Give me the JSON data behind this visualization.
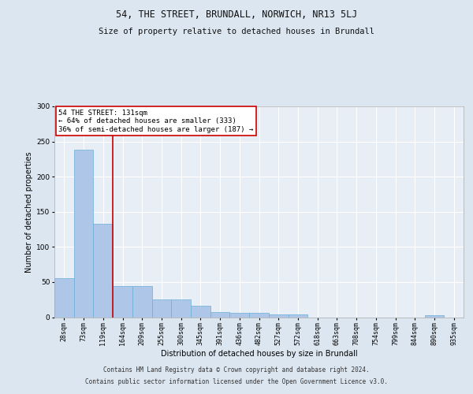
{
  "title1": "54, THE STREET, BRUNDALL, NORWICH, NR13 5LJ",
  "title2": "Size of property relative to detached houses in Brundall",
  "xlabel": "Distribution of detached houses by size in Brundall",
  "ylabel": "Number of detached properties",
  "footer1": "Contains HM Land Registry data © Crown copyright and database right 2024.",
  "footer2": "Contains public sector information licensed under the Open Government Licence v3.0.",
  "bar_labels": [
    "28sqm",
    "73sqm",
    "119sqm",
    "164sqm",
    "209sqm",
    "255sqm",
    "300sqm",
    "345sqm",
    "391sqm",
    "436sqm",
    "482sqm",
    "527sqm",
    "572sqm",
    "618sqm",
    "663sqm",
    "708sqm",
    "754sqm",
    "799sqm",
    "844sqm",
    "890sqm",
    "935sqm"
  ],
  "bar_values": [
    56,
    238,
    133,
    44,
    44,
    25,
    25,
    16,
    7,
    6,
    6,
    4,
    4,
    0,
    0,
    0,
    0,
    0,
    0,
    3,
    0
  ],
  "bar_color": "#aec6e8",
  "bar_edge_color": "#6aaed6",
  "vline_idx": 2.5,
  "vline_color": "#cc0000",
  "annotation_text": "54 THE STREET: 131sqm\n← 64% of detached houses are smaller (333)\n36% of semi-detached houses are larger (187) →",
  "annotation_box_facecolor": "#ffffff",
  "annotation_box_edgecolor": "#cc0000",
  "ylim": [
    0,
    300
  ],
  "yticks": [
    0,
    50,
    100,
    150,
    200,
    250,
    300
  ],
  "bg_color": "#dce6f0",
  "plot_bg_color": "#e8eef5",
  "title1_fontsize": 8.5,
  "title2_fontsize": 7.5,
  "xlabel_fontsize": 7,
  "ylabel_fontsize": 7,
  "tick_fontsize": 6,
  "annot_fontsize": 6.5,
  "footer_fontsize": 5.5
}
